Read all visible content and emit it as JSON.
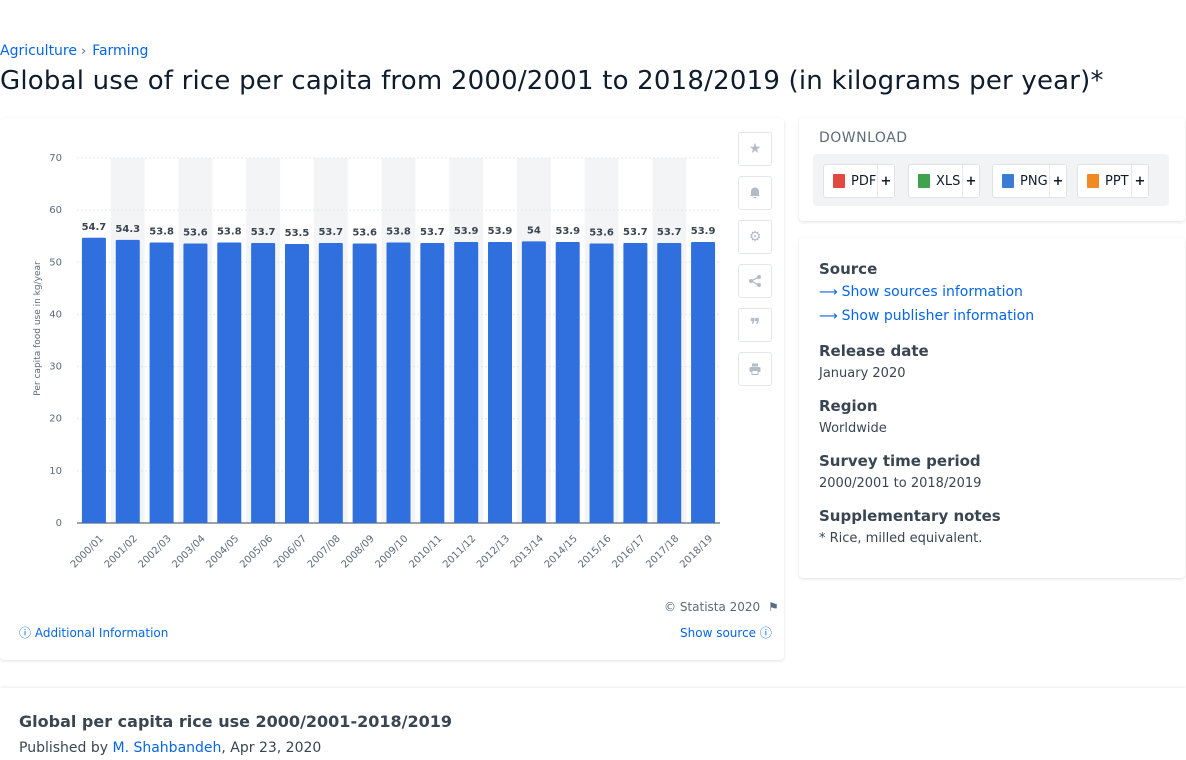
{
  "breadcrumb": {
    "items": [
      "Agriculture",
      "Farming"
    ],
    "separator": "›"
  },
  "page_title": "Global use of rice per capita from 2000/2001 to 2018/2019 (in kilograms per year)*",
  "chart_data": {
    "type": "bar",
    "categories": [
      "2000/01",
      "2001/02",
      "2002/03",
      "2003/04",
      "2004/05",
      "2005/06",
      "2006/07",
      "2007/08",
      "2008/09",
      "2009/10",
      "2010/11",
      "2011/12",
      "2012/13",
      "2013/14",
      "2014/15",
      "2015/16",
      "2016/17",
      "2017/18",
      "2018/19"
    ],
    "values": [
      54.7,
      54.3,
      53.8,
      53.6,
      53.8,
      53.7,
      53.5,
      53.7,
      53.6,
      53.8,
      53.7,
      53.9,
      53.9,
      54,
      53.9,
      53.6,
      53.7,
      53.7,
      53.9
    ],
    "data_labels": [
      "54.7",
      "54.3",
      "53.8",
      "53.6",
      "53.8",
      "53.7",
      "53.5",
      "53.7",
      "53.6",
      "53.8",
      "53.7",
      "53.9",
      "53.9",
      "54",
      "53.9",
      "53.6",
      "53.7",
      "53.7",
      "53.9"
    ],
    "ylabel": "Per capita food use in kg/year",
    "xlabel": "",
    "ylim": [
      0,
      70
    ],
    "yticks": [
      "0",
      "10",
      "20",
      "30",
      "40",
      "50",
      "60",
      "70"
    ],
    "grid": true,
    "bar_color": "#2f6fde",
    "stripe_color": "#f3f4f6"
  },
  "chart_footer": {
    "copyright": "© Statista 2020",
    "additional_info": "Additional Information",
    "show_source": "Show source"
  },
  "tools": [
    "star-icon",
    "bell-icon",
    "gear-icon",
    "share-icon",
    "quote-icon",
    "print-icon"
  ],
  "download": {
    "title": "DOWNLOAD",
    "formats": [
      {
        "label": "PDF",
        "color": "#e04a3f"
      },
      {
        "label": "XLS",
        "color": "#3fa34d"
      },
      {
        "label": "PNG",
        "color": "#3a7bd5"
      },
      {
        "label": "PPT",
        "color": "#f08a24"
      }
    ],
    "plus": "+"
  },
  "info": {
    "source_label": "Source",
    "source_link": "Show sources information",
    "publisher_link": "Show publisher information",
    "release_label": "Release date",
    "release_value": "January 2020",
    "region_label": "Region",
    "region_value": "Worldwide",
    "period_label": "Survey time period",
    "period_value": "2000/2001 to 2018/2019",
    "notes_label": "Supplementary notes",
    "notes_value": "* Rice, milled equivalent."
  },
  "article": {
    "title": "Global per capita rice use 2000/2001-2018/2019",
    "published_by": "Published by",
    "author": "M. Shahbandeh",
    "date": ", Apr 23, 2020"
  }
}
